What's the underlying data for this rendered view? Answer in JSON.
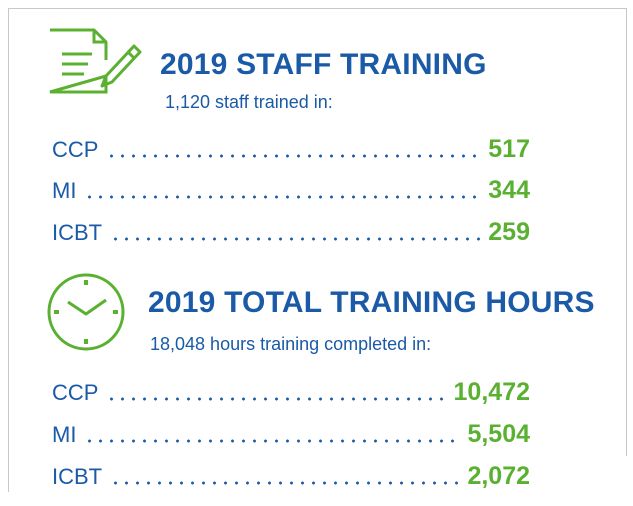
{
  "sections": [
    {
      "title": "2019 STAFF TRAINING",
      "subtitle": "1,120 staff trained in:",
      "rows": [
        {
          "label": "CCP",
          "value": "517"
        },
        {
          "label": "MI",
          "value": "344"
        },
        {
          "label": "ICBT",
          "value": "259"
        }
      ]
    },
    {
      "title": "2019 TOTAL TRAINING HOURS",
      "subtitle": "18,048 hours training completed in:",
      "rows": [
        {
          "label": "CCP",
          "value": "10,472"
        },
        {
          "label": "MI",
          "value": "5,504"
        },
        {
          "label": "ICBT",
          "value": "2,072"
        }
      ]
    }
  ]
}
